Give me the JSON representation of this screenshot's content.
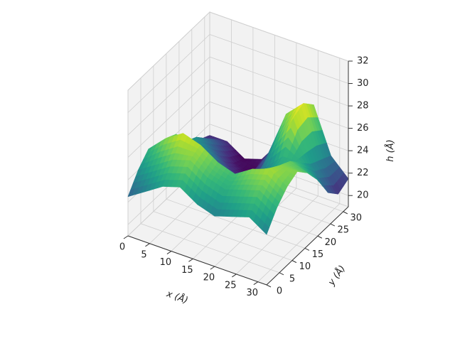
{
  "chart_data": {
    "type": "surface3d",
    "title": "",
    "xlabel": "x (Å)",
    "ylabel": "y (Å)",
    "zlabel": "h (Å)",
    "xlim": [
      0,
      32
    ],
    "ylim": [
      0,
      32
    ],
    "zlim": [
      19,
      32
    ],
    "xticks": [
      "0",
      "5",
      "10",
      "15",
      "20",
      "25",
      "30"
    ],
    "yticks": [
      "0",
      "5",
      "10",
      "15",
      "20",
      "25",
      "30"
    ],
    "zticks": [
      "20",
      "22",
      "24",
      "26",
      "28",
      "30",
      "32"
    ],
    "grid": true,
    "colormap": "viridis",
    "panes": {
      "face": "#f2f2f2",
      "edge": "#d6d6d6",
      "grid": "#cfcfcf"
    },
    "x": [
      0,
      4,
      8,
      12,
      16,
      20,
      24,
      28,
      32
    ],
    "y": [
      0,
      4,
      8,
      12,
      16,
      20,
      24,
      28,
      32
    ],
    "z": [
      [
        22.5,
        23.5,
        24.5,
        25.0,
        24.0,
        23.5,
        24.0,
        24.5,
        23.5
      ],
      [
        24.0,
        25.0,
        26.0,
        26.5,
        25.5,
        25.0,
        25.5,
        26.0,
        25.0
      ],
      [
        25.0,
        26.5,
        27.5,
        27.0,
        26.0,
        25.5,
        26.5,
        27.0,
        26.0
      ],
      [
        24.0,
        26.0,
        26.0,
        24.5,
        23.5,
        24.0,
        25.5,
        26.5,
        26.5
      ],
      [
        23.0,
        24.5,
        24.0,
        22.5,
        22.0,
        23.0,
        24.5,
        26.0,
        25.5
      ],
      [
        22.0,
        24.0,
        23.0,
        21.5,
        21.5,
        23.5,
        25.0,
        25.0,
        24.0
      ],
      [
        21.0,
        23.0,
        21.5,
        20.5,
        21.5,
        25.0,
        27.5,
        24.0,
        22.0
      ],
      [
        21.5,
        22.0,
        20.5,
        20.0,
        22.5,
        26.5,
        28.0,
        23.5,
        21.0
      ],
      [
        21.0,
        21.0,
        20.0,
        20.5,
        22.5,
        25.5,
        27.0,
        23.0,
        21.5
      ]
    ]
  }
}
